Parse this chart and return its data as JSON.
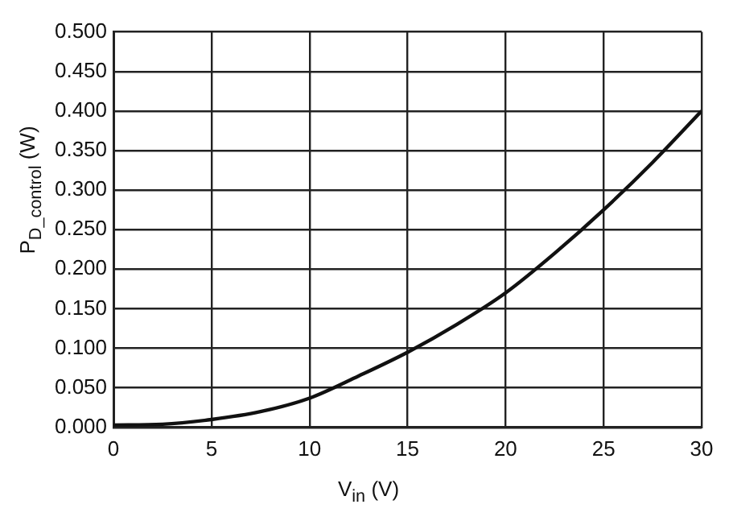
{
  "chart_data": {
    "type": "line",
    "xlabel": "V$_{in}$ (V)",
    "ylabel": "P$_{D_control}$ (W)",
    "x": [
      0,
      2.5,
      5,
      7.5,
      10,
      12.5,
      15,
      17.5,
      20,
      22.5,
      25,
      27.5,
      30
    ],
    "series": [
      {
        "color": "#111111",
        "values": [
          0.003,
          0.004,
          0.01,
          0.02,
          0.037,
          0.065,
          0.095,
          0.13,
          0.17,
          0.22,
          0.275,
          0.335,
          0.4
        ]
      }
    ],
    "xlim": [
      0,
      30
    ],
    "xticks": [
      0,
      5,
      10,
      15,
      20,
      25,
      30
    ],
    "ylim": [
      0,
      0.5
    ],
    "yticks": [
      {
        "value": 0,
        "label": "0.000"
      },
      {
        "value": 0.05,
        "label": "0.050"
      },
      {
        "value": 0.1,
        "label": "0.100"
      },
      {
        "value": 0.15,
        "label": "0.150"
      },
      {
        "value": 0.2,
        "label": "0.200"
      },
      {
        "value": 0.25,
        "label": "0.250"
      },
      {
        "value": 0.3,
        "label": "0.300"
      },
      {
        "value": 0.35,
        "label": "0.350"
      },
      {
        "value": 0.4,
        "label": "0.400"
      },
      {
        "value": 0.45,
        "label": "0.450"
      },
      {
        "value": 0.5,
        "label": "0.500"
      }
    ],
    "grid": true,
    "legend": false,
    "marker": "none",
    "line_style": "solid"
  }
}
